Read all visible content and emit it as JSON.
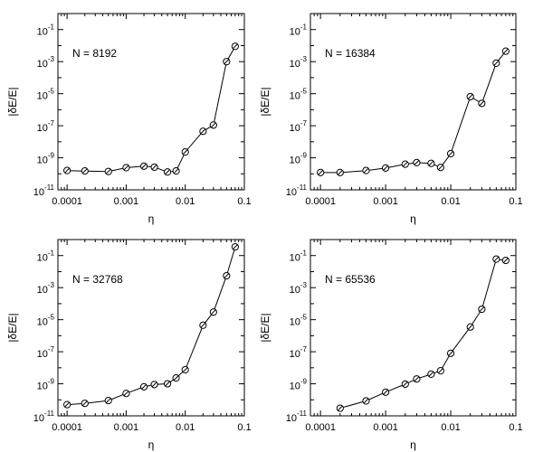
{
  "chart_data": [
    {
      "type": "line",
      "annotation": "N = 8192",
      "xlabel": "η",
      "ylabel": "|δE/E|",
      "x_scale": "log",
      "y_scale": "log",
      "xlim": [
        7e-05,
        0.1
      ],
      "ylim": [
        1e-11,
        1
      ],
      "x_ticks": [
        "0.0001",
        "0.001",
        "0.01",
        "0.1"
      ],
      "y_ticks": [
        {
          "base": "10",
          "exp": "-1"
        },
        {
          "base": "10",
          "exp": "-3"
        },
        {
          "base": "10",
          "exp": "-5"
        },
        {
          "base": "10",
          "exp": "-7"
        },
        {
          "base": "10",
          "exp": "-9"
        },
        {
          "base": "10",
          "exp": "-11"
        }
      ],
      "grid": false,
      "x": [
        0.0001,
        0.0002,
        0.0005,
        0.001,
        0.002,
        0.003,
        0.005,
        0.007,
        0.01,
        0.02,
        0.03,
        0.05,
        0.07
      ],
      "y": [
        1.6e-10,
        1.5e-10,
        1.4e-10,
        2.4e-10,
        3e-10,
        2.6e-10,
        1.3e-10,
        1.5e-10,
        2.3e-09,
        4.5e-08,
        1.1e-07,
        0.001,
        0.009
      ]
    },
    {
      "type": "line",
      "annotation": "N = 16384",
      "xlabel": "η",
      "ylabel": "|δE/E|",
      "x_scale": "log",
      "y_scale": "log",
      "xlim": [
        7e-05,
        0.1
      ],
      "ylim": [
        1e-11,
        1
      ],
      "x_ticks": [
        "0.0001",
        "0.001",
        "0.01",
        "0.1"
      ],
      "y_ticks": [
        {
          "base": "10",
          "exp": "-1"
        },
        {
          "base": "10",
          "exp": "-3"
        },
        {
          "base": "10",
          "exp": "-5"
        },
        {
          "base": "10",
          "exp": "-7"
        },
        {
          "base": "10",
          "exp": "-9"
        },
        {
          "base": "10",
          "exp": "-11"
        }
      ],
      "grid": false,
      "x": [
        0.0001,
        0.0002,
        0.0005,
        0.001,
        0.002,
        0.003,
        0.005,
        0.007,
        0.01,
        0.02,
        0.03,
        0.05,
        0.07
      ],
      "y": [
        1.2e-10,
        1.2e-10,
        1.6e-10,
        2.3e-10,
        4e-10,
        5e-10,
        4.5e-10,
        2.5e-10,
        1.8e-09,
        6.5e-06,
        2.5e-06,
        0.0008,
        0.0045
      ]
    },
    {
      "type": "line",
      "annotation": "N = 32768",
      "xlabel": "η",
      "ylabel": "|δE/E|",
      "x_scale": "log",
      "y_scale": "log",
      "xlim": [
        7e-05,
        0.1
      ],
      "ylim": [
        1e-11,
        1
      ],
      "x_ticks": [
        "0.0001",
        "0.001",
        "0.01",
        "0.1"
      ],
      "y_ticks": [
        {
          "base": "10",
          "exp": "-1"
        },
        {
          "base": "10",
          "exp": "-3"
        },
        {
          "base": "10",
          "exp": "-5"
        },
        {
          "base": "10",
          "exp": "-7"
        },
        {
          "base": "10",
          "exp": "-9"
        },
        {
          "base": "10",
          "exp": "-11"
        }
      ],
      "grid": false,
      "x": [
        0.0001,
        0.0002,
        0.0005,
        0.001,
        0.002,
        0.003,
        0.005,
        0.007,
        0.01,
        0.02,
        0.03,
        0.05,
        0.07
      ],
      "y": [
        5e-11,
        6e-11,
        9e-11,
        2.5e-10,
        6.5e-10,
        9e-10,
        1e-09,
        2.3e-09,
        7.5e-09,
        4.5e-06,
        3e-05,
        0.0055,
        0.35
      ]
    },
    {
      "type": "line",
      "annotation": "N = 65536",
      "xlabel": "η",
      "ylabel": "|δE/E|",
      "x_scale": "log",
      "y_scale": "log",
      "xlim": [
        7e-05,
        0.1
      ],
      "ylim": [
        1e-11,
        1
      ],
      "x_ticks": [
        "0.0001",
        "0.001",
        "0.01",
        "0.1"
      ],
      "y_ticks": [
        {
          "base": "10",
          "exp": "-1"
        },
        {
          "base": "10",
          "exp": "-3"
        },
        {
          "base": "10",
          "exp": "-5"
        },
        {
          "base": "10",
          "exp": "-7"
        },
        {
          "base": "10",
          "exp": "-9"
        },
        {
          "base": "10",
          "exp": "-11"
        }
      ],
      "grid": false,
      "x": [
        0.0002,
        0.0005,
        0.001,
        0.002,
        0.003,
        0.005,
        0.007,
        0.01,
        0.02,
        0.03,
        0.05,
        0.07
      ],
      "y": [
        3e-11,
        8.5e-11,
        3e-10,
        9.5e-10,
        2e-09,
        4e-09,
        6.5e-09,
        8e-08,
        3.5e-06,
        4.5e-05,
        0.06,
        0.05
      ]
    }
  ],
  "colors": {
    "background": "#ffffff",
    "line": "#000000",
    "marker_fill": "#ffffff"
  },
  "markers": {
    "shape": "circle-with-slash"
  }
}
